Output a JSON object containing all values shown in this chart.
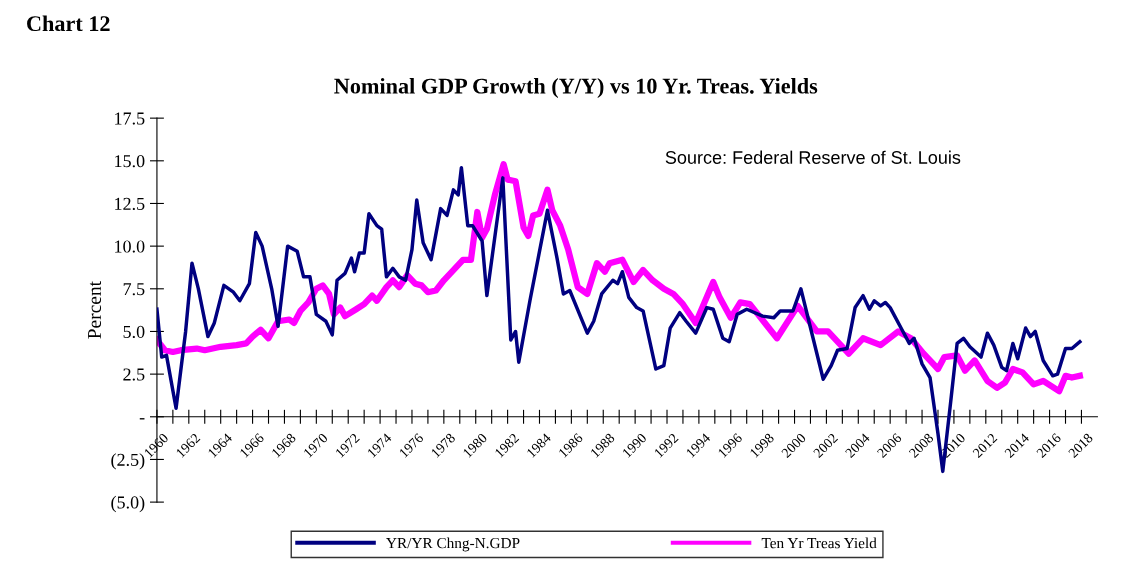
{
  "chart_data": {
    "type": "line",
    "title": "Chart 12",
    "subtitle": "Nominal GDP Growth (Y/Y) vs 10 Yr. Treas. Yields",
    "ylabel": "Percent",
    "annotations": [
      "Source: Federal Reserve of St. Louis"
    ],
    "xlim": [
      1960,
      2019
    ],
    "ylim": [
      -5,
      17.5
    ],
    "yticks": [
      {
        "value": -5,
        "label": "(5.0)"
      },
      {
        "value": -2.5,
        "label": "(2.5)"
      },
      {
        "value": 0,
        "label": "-"
      },
      {
        "value": 2.5,
        "label": "2.5"
      },
      {
        "value": 5,
        "label": "5.0"
      },
      {
        "value": 7.5,
        "label": "7.5"
      },
      {
        "value": 10,
        "label": "10.0"
      },
      {
        "value": 12.5,
        "label": "12.5"
      },
      {
        "value": 15,
        "label": "15.0"
      },
      {
        "value": 17.5,
        "label": "17.5"
      }
    ],
    "xticks": [
      {
        "value": 1960,
        "label": "1960"
      },
      {
        "value": 1961,
        "label": null
      },
      {
        "value": 1962,
        "label": "1962"
      },
      {
        "value": 1963,
        "label": null
      },
      {
        "value": 1964,
        "label": "1964"
      },
      {
        "value": 1965,
        "label": null
      },
      {
        "value": 1966,
        "label": "1966"
      },
      {
        "value": 1967,
        "label": null
      },
      {
        "value": 1968,
        "label": "1968"
      },
      {
        "value": 1969,
        "label": null
      },
      {
        "value": 1970,
        "label": "1970"
      },
      {
        "value": 1971,
        "label": null
      },
      {
        "value": 1972,
        "label": "1972"
      },
      {
        "value": 1973,
        "label": null
      },
      {
        "value": 1974,
        "label": "1974"
      },
      {
        "value": 1975,
        "label": null
      },
      {
        "value": 1976,
        "label": "1976"
      },
      {
        "value": 1977,
        "label": null
      },
      {
        "value": 1978,
        "label": "1978"
      },
      {
        "value": 1979,
        "label": null
      },
      {
        "value": 1980,
        "label": "1980"
      },
      {
        "value": 1981,
        "label": null
      },
      {
        "value": 1982,
        "label": "1982"
      },
      {
        "value": 1983,
        "label": null
      },
      {
        "value": 1984,
        "label": "1984"
      },
      {
        "value": 1985,
        "label": null
      },
      {
        "value": 1986,
        "label": "1986"
      },
      {
        "value": 1987,
        "label": null
      },
      {
        "value": 1988,
        "label": "1988"
      },
      {
        "value": 1989,
        "label": null
      },
      {
        "value": 1990,
        "label": "1990"
      },
      {
        "value": 1991,
        "label": null
      },
      {
        "value": 1992,
        "label": "1992"
      },
      {
        "value": 1993,
        "label": null
      },
      {
        "value": 1994,
        "label": "1994"
      },
      {
        "value": 1995,
        "label": null
      },
      {
        "value": 1996,
        "label": "1996"
      },
      {
        "value": 1997,
        "label": null
      },
      {
        "value": 1998,
        "label": "1998"
      },
      {
        "value": 1999,
        "label": null
      },
      {
        "value": 2000,
        "label": "2000"
      },
      {
        "value": 2001,
        "label": null
      },
      {
        "value": 2002,
        "label": "2002"
      },
      {
        "value": 2003,
        "label": null
      },
      {
        "value": 2004,
        "label": "2004"
      },
      {
        "value": 2005,
        "label": null
      },
      {
        "value": 2006,
        "label": "2006"
      },
      {
        "value": 2007,
        "label": null
      },
      {
        "value": 2008,
        "label": "2008"
      },
      {
        "value": 2009,
        "label": null
      },
      {
        "value": 2010,
        "label": "2010"
      },
      {
        "value": 2011,
        "label": null
      },
      {
        "value": 2012,
        "label": "2012"
      },
      {
        "value": 2013,
        "label": null
      },
      {
        "value": 2014,
        "label": "2014"
      },
      {
        "value": 2015,
        "label": null
      },
      {
        "value": 2016,
        "label": "2016"
      },
      {
        "value": 2017,
        "label": null
      },
      {
        "value": 2018,
        "label": "2018"
      }
    ],
    "grid": false,
    "legend": "bottom",
    "marker": "none",
    "line_style": "solid",
    "series": [
      {
        "name": "YR/YR Chng-N.GDP",
        "color": "#000080",
        "x": [
          1960.0,
          1960.3,
          1960.6,
          1961.2,
          1961.8,
          1962.2,
          1962.6,
          1963.2,
          1963.6,
          1964.2,
          1964.8,
          1965.2,
          1965.8,
          1966.2,
          1966.6,
          1967.2,
          1967.6,
          1968.2,
          1968.8,
          1969.2,
          1969.6,
          1970.0,
          1970.6,
          1971.0,
          1971.3,
          1971.8,
          1972.2,
          1972.4,
          1972.7,
          1973.0,
          1973.3,
          1973.8,
          1974.1,
          1974.4,
          1974.8,
          1975.2,
          1975.6,
          1976.0,
          1976.3,
          1976.7,
          1977.2,
          1977.8,
          1978.2,
          1978.6,
          1978.9,
          1979.1,
          1979.5,
          1979.8,
          1980.4,
          1980.7,
          1981.7,
          1982.2,
          1982.5,
          1982.7,
          1983.4,
          1984.5,
          1985.1,
          1985.5,
          1985.9,
          1987.0,
          1987.4,
          1987.9,
          1988.6,
          1988.9,
          1989.2,
          1989.6,
          1990.1,
          1990.5,
          1991.3,
          1991.8,
          1992.2,
          1992.8,
          1993.2,
          1993.8,
          1994.5,
          1994.9,
          1995.5,
          1995.9,
          1996.4,
          1997.0,
          1998.0,
          1998.7,
          1999.1,
          1999.9,
          2000.4,
          2000.9,
          2001.8,
          2002.3,
          2002.7,
          2003.3,
          2003.8,
          2004.3,
          2004.7,
          2005.0,
          2005.4,
          2005.7,
          2006.0,
          2006.8,
          2007.2,
          2007.5,
          2008.0,
          2008.5,
          2009.0,
          2009.3,
          2009.8,
          2010.2,
          2010.6,
          2011.0,
          2011.7,
          2012.1,
          2012.5,
          2013.0,
          2013.3,
          2013.7,
          2014.0,
          2014.5,
          2014.8,
          2015.1,
          2015.6,
          2016.2,
          2016.5,
          2017.0,
          2017.4,
          2017.9
        ],
        "values": [
          6.3,
          3.5,
          3.6,
          0.5,
          5.0,
          9.0,
          7.5,
          4.7,
          5.5,
          7.7,
          7.3,
          6.8,
          7.8,
          10.8,
          10.0,
          7.5,
          5.3,
          10.0,
          9.7,
          8.2,
          8.2,
          6.0,
          5.6,
          4.8,
          8.0,
          8.4,
          9.3,
          8.5,
          9.6,
          9.6,
          11.9,
          11.2,
          11.0,
          8.2,
          8.7,
          8.2,
          8.0,
          9.8,
          12.7,
          10.2,
          9.2,
          12.2,
          11.8,
          13.3,
          13.0,
          14.6,
          11.2,
          11.2,
          10.3,
          7.1,
          14.0,
          4.5,
          5.0,
          3.2,
          6.8,
          12.1,
          9.3,
          7.2,
          7.4,
          4.9,
          5.6,
          7.2,
          8.0,
          7.8,
          8.5,
          7.0,
          6.4,
          6.2,
          2.8,
          3.0,
          5.2,
          6.1,
          5.6,
          4.9,
          6.4,
          6.3,
          4.6,
          4.4,
          6.0,
          6.3,
          5.9,
          5.8,
          6.2,
          6.2,
          7.5,
          5.6,
          2.2,
          3.0,
          3.9,
          4.0,
          6.4,
          7.1,
          6.3,
          6.8,
          6.5,
          6.7,
          6.4,
          5.0,
          4.3,
          4.6,
          3.1,
          2.3,
          -1.0,
          -3.2,
          0.9,
          4.3,
          4.6,
          4.1,
          3.5,
          4.9,
          4.2,
          2.9,
          2.7,
          4.3,
          3.4,
          5.2,
          4.7,
          5.0,
          3.3,
          2.4,
          2.5,
          4.0,
          4.0,
          4.4
        ]
      },
      {
        "name": "Ten Yr Treas Yield",
        "color": "#ff00ff",
        "x": [
          1960.0,
          1960.5,
          1961.0,
          1961.5,
          1962.5,
          1963.0,
          1964.0,
          1965.0,
          1965.6,
          1966.0,
          1966.5,
          1967.0,
          1967.6,
          1968.3,
          1968.6,
          1969.0,
          1969.5,
          1970.0,
          1970.4,
          1970.8,
          1971.1,
          1971.5,
          1971.8,
          1972.5,
          1973.0,
          1973.5,
          1973.8,
          1974.4,
          1974.8,
          1975.2,
          1975.7,
          1976.2,
          1976.6,
          1977.0,
          1977.5,
          1978.0,
          1978.6,
          1979.2,
          1979.7,
          1980.1,
          1980.4,
          1980.7,
          1981.2,
          1981.75,
          1982.0,
          1982.5,
          1983.0,
          1983.3,
          1983.6,
          1984.0,
          1984.5,
          1984.8,
          1985.3,
          1985.8,
          1986.4,
          1987.0,
          1987.6,
          1988.1,
          1988.4,
          1989.2,
          1989.9,
          1990.5,
          1991.1,
          1991.8,
          1992.4,
          1993.0,
          1993.8,
          1994.9,
          1995.3,
          1996.0,
          1996.6,
          1997.2,
          1998.9,
          2000.2,
          2001.4,
          2002.1,
          2003.4,
          2004.3,
          2005.4,
          2006.5,
          2007.3,
          2008.1,
          2009.0,
          2009.4,
          2010.2,
          2010.7,
          2011.3,
          2012.1,
          2012.7,
          2013.2,
          2013.7,
          2014.3,
          2015.0,
          2015.6,
          2016.6,
          2017.0,
          2017.4,
          2017.9
        ],
        "values": [
          4.5,
          3.9,
          3.8,
          3.9,
          4.0,
          3.9,
          4.1,
          4.2,
          4.3,
          4.7,
          5.1,
          4.6,
          5.6,
          5.7,
          5.5,
          6.2,
          6.7,
          7.5,
          7.7,
          7.2,
          6.0,
          6.4,
          5.9,
          6.3,
          6.6,
          7.1,
          6.8,
          7.6,
          8.0,
          7.6,
          8.3,
          7.8,
          7.7,
          7.3,
          7.4,
          8.0,
          8.6,
          9.2,
          9.2,
          12.0,
          10.5,
          11.0,
          13.0,
          14.8,
          13.9,
          13.8,
          11.1,
          10.6,
          11.8,
          11.9,
          13.3,
          12.1,
          11.2,
          9.8,
          7.6,
          7.2,
          9.0,
          8.5,
          9.0,
          9.2,
          7.9,
          8.6,
          8.0,
          7.5,
          7.2,
          6.6,
          5.5,
          7.9,
          7.0,
          5.8,
          6.7,
          6.6,
          4.6,
          6.5,
          5.0,
          5.0,
          3.7,
          4.6,
          4.2,
          5.0,
          4.6,
          3.7,
          2.8,
          3.5,
          3.6,
          2.7,
          3.3,
          2.1,
          1.7,
          2.0,
          2.8,
          2.6,
          1.9,
          2.1,
          1.5,
          2.4,
          2.3,
          2.4
        ]
      }
    ]
  }
}
